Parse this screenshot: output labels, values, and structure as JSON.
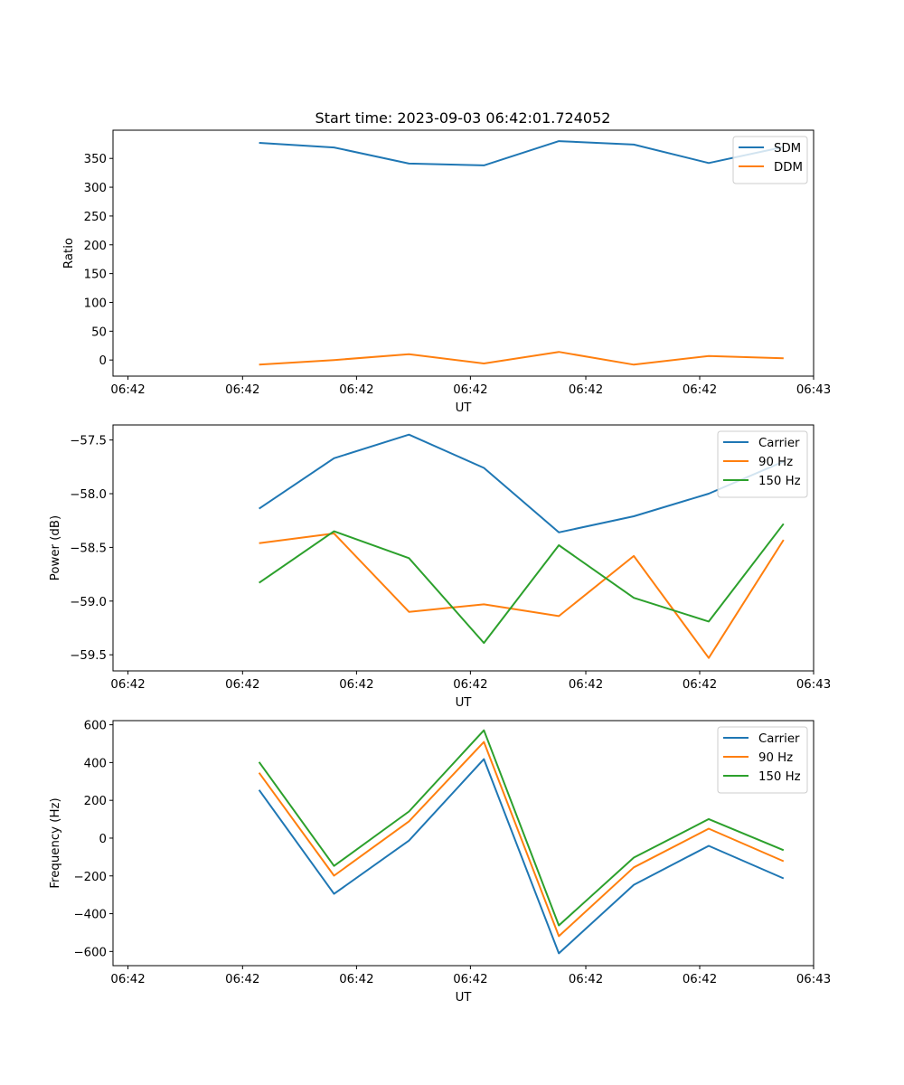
{
  "figure_title": "Start time: 2023-09-03 06:42:01.724052",
  "chart_data": [
    {
      "type": "line",
      "title": "Start time: 2023-09-03 06:42:01.724052",
      "xlabel": "UT",
      "ylabel": "Ratio",
      "x": [
        1,
        2,
        3,
        4,
        5,
        6,
        7,
        8
      ],
      "xlim": [
        -0.95,
        8.4
      ],
      "xticks": [
        -0.75,
        0.779,
        2.3,
        3.82,
        5.36,
        6.88,
        8.4
      ],
      "xtick_labels": [
        "06:42",
        "06:42",
        "06:42",
        "06:42",
        "06:42",
        "06:42",
        "06:43"
      ],
      "ylim": [
        -28,
        399
      ],
      "yticks": [
        0,
        50,
        100,
        150,
        200,
        250,
        300,
        350
      ],
      "ytick_labels": [
        "0",
        "50",
        "100",
        "150",
        "200",
        "250",
        "300",
        "350"
      ],
      "legend_position": "top-right",
      "grid": false,
      "series": [
        {
          "name": "SDM",
          "color": "#1f77b4",
          "values": [
            377,
            369,
            341,
            338,
            380,
            374,
            342,
            370
          ]
        },
        {
          "name": "DDM",
          "color": "#ff7f0e",
          "values": [
            -8,
            0,
            10,
            -6,
            14,
            -8,
            7,
            3
          ]
        }
      ]
    },
    {
      "type": "line",
      "title": "",
      "xlabel": "UT",
      "ylabel": "Power (dB)",
      "x": [
        1,
        2,
        3,
        4,
        5,
        6,
        7,
        8
      ],
      "xlim": [
        -0.95,
        8.4
      ],
      "xticks": [
        -0.75,
        0.779,
        2.3,
        3.82,
        5.36,
        6.88,
        8.4
      ],
      "xtick_labels": [
        "06:42",
        "06:42",
        "06:42",
        "06:42",
        "06:42",
        "06:42",
        "06:43"
      ],
      "ylim": [
        -59.65,
        -57.36
      ],
      "yticks": [
        -59.5,
        -59.0,
        -58.5,
        -58.0,
        -57.5
      ],
      "ytick_labels": [
        "−59.5",
        "−59.0",
        "−58.5",
        "−58.0",
        "−57.5"
      ],
      "legend_position": "top-right",
      "grid": false,
      "series": [
        {
          "name": "Carrier",
          "color": "#1f77b4",
          "values": [
            -58.14,
            -57.67,
            -57.45,
            -57.76,
            -58.36,
            -58.21,
            -58.0,
            -57.7
          ]
        },
        {
          "name": "90 Hz",
          "color": "#ff7f0e",
          "values": [
            -58.46,
            -58.37,
            -59.1,
            -59.03,
            -59.14,
            -58.58,
            -59.53,
            -58.43
          ]
        },
        {
          "name": "150 Hz",
          "color": "#2ca02c",
          "values": [
            -58.83,
            -58.35,
            -58.6,
            -59.39,
            -58.48,
            -58.97,
            -59.19,
            -58.28
          ]
        }
      ]
    },
    {
      "type": "line",
      "title": "",
      "xlabel": "UT",
      "ylabel": "Frequency (Hz)",
      "x": [
        1,
        2,
        3,
        4,
        5,
        6,
        7,
        8
      ],
      "xlim": [
        -0.95,
        8.4
      ],
      "xticks": [
        -0.75,
        0.779,
        2.3,
        3.82,
        5.36,
        6.88,
        8.4
      ],
      "xtick_labels": [
        "06:42",
        "06:42",
        "06:42",
        "06:42",
        "06:42",
        "06:42",
        "06:43"
      ],
      "ylim": [
        -675,
        622
      ],
      "yticks": [
        -600,
        -400,
        -200,
        0,
        200,
        400,
        600
      ],
      "ytick_labels": [
        "−600",
        "−400",
        "−200",
        "0",
        "200",
        "400",
        "600"
      ],
      "legend_position": "top-right",
      "grid": false,
      "series": [
        {
          "name": "Carrier",
          "color": "#1f77b4",
          "values": [
            255,
            -295,
            -13,
            418,
            -610,
            -247,
            -41,
            -213
          ]
        },
        {
          "name": "90 Hz",
          "color": "#ff7f0e",
          "values": [
            346,
            -199,
            89,
            509,
            -519,
            -155,
            50,
            -122
          ]
        },
        {
          "name": "150 Hz",
          "color": "#2ca02c",
          "values": [
            403,
            -147,
            141,
            571,
            -462,
            -103,
            101,
            -64
          ]
        }
      ]
    }
  ]
}
